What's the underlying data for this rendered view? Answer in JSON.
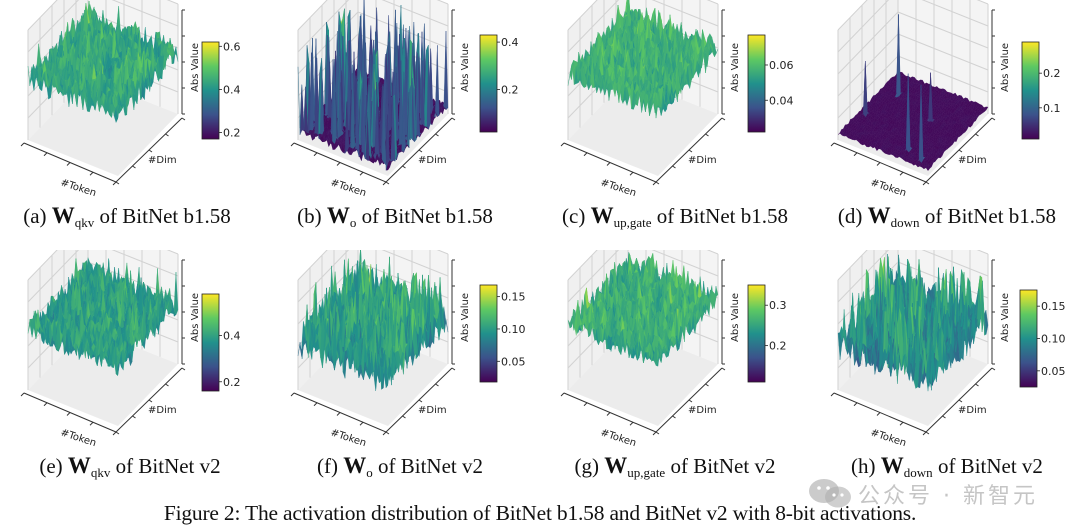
{
  "figure": {
    "caption": "Figure 2: The activation distribution of BitNet b1.58 and BitNet v2 with 8-bit activations."
  },
  "watermark": {
    "text": "公众号 · 新智元",
    "icon": "wechat-icon"
  },
  "colormap": [
    "#440154",
    "#3b528b",
    "#21918c",
    "#5ec962",
    "#fde725"
  ],
  "chart_data": [
    {
      "type": "surface3d",
      "id": "a",
      "label": "(a)",
      "symbol": "W",
      "subscript": "qkv",
      "suffix": "of BitNet b1.58",
      "xlabel": "#Token",
      "ylabel": "#Dim",
      "zlabel": "Abs Value",
      "colorbar": {
        "range": [
          0.17,
          0.62
        ],
        "ticks": [
          "0.6",
          "0.4",
          "0.2"
        ],
        "tick_values": [
          0.6,
          0.4,
          0.2
        ]
      },
      "distribution": {
        "base": 0.42,
        "spread": 0.09,
        "spikes": 0.03,
        "spike_max": 0.62,
        "floor": 0.17
      }
    },
    {
      "type": "surface3d",
      "id": "b",
      "label": "(b)",
      "symbol": "W",
      "subscript": "o",
      "suffix": "of BitNet b1.58",
      "xlabel": "#Token",
      "ylabel": "#Dim",
      "zlabel": "Abs Value",
      "colorbar": {
        "range": [
          0.02,
          0.43
        ],
        "ticks": [
          "0.4",
          "0.2"
        ],
        "tick_values": [
          0.4,
          0.2
        ]
      },
      "distribution": {
        "base": 0.04,
        "spread": 0.02,
        "spikes": 0.12,
        "spike_max": 0.43,
        "floor": 0.02
      }
    },
    {
      "type": "surface3d",
      "id": "c",
      "label": "(c)",
      "symbol": "W",
      "subscript": "up,gate",
      "suffix": "of BitNet b1.58",
      "xlabel": "#Token",
      "ylabel": "#Dim",
      "zlabel": "Abs Value",
      "colorbar": {
        "range": [
          0.022,
          0.077
        ],
        "ticks": [
          "0.06",
          "0.04"
        ],
        "tick_values": [
          0.06,
          0.04
        ]
      },
      "distribution": {
        "base": 0.055,
        "spread": 0.01,
        "spikes": 0.03,
        "spike_max": 0.077,
        "floor": 0.022
      }
    },
    {
      "type": "surface3d",
      "id": "d",
      "label": "(d)",
      "symbol": "W",
      "subscript": "down",
      "suffix": "of BitNet b1.58",
      "xlabel": "#Token",
      "ylabel": "#Dim",
      "zlabel": "Abs Value",
      "colorbar": {
        "range": [
          0.01,
          0.29
        ],
        "ticks": [
          "0.2",
          "0.1"
        ],
        "tick_values": [
          0.2,
          0.1
        ]
      },
      "distribution": {
        "base": 0.02,
        "spread": 0.005,
        "spikes": 0.004,
        "spike_max": 0.29,
        "floor": 0.01
      }
    },
    {
      "type": "surface3d",
      "id": "e",
      "label": "(e)",
      "symbol": "W",
      "subscript": "qkv",
      "suffix": "of BitNet v2",
      "xlabel": "#Token",
      "ylabel": "#Dim",
      "zlabel": "Abs Value",
      "colorbar": {
        "range": [
          0.16,
          0.58
        ],
        "ticks": [
          "0.4",
          "0.2"
        ],
        "tick_values": [
          0.4,
          0.2
        ]
      },
      "distribution": {
        "base": 0.38,
        "spread": 0.08,
        "spikes": 0.03,
        "spike_max": 0.58,
        "floor": 0.16
      }
    },
    {
      "type": "surface3d",
      "id": "f",
      "label": "(f)",
      "symbol": "W",
      "subscript": "o",
      "suffix": "of BitNet v2",
      "xlabel": "#Token",
      "ylabel": "#Dim",
      "zlabel": "Abs Value",
      "colorbar": {
        "range": [
          0.018,
          0.168
        ],
        "ticks": [
          "0.15",
          "0.10",
          "0.05"
        ],
        "tick_values": [
          0.15,
          0.1,
          0.05
        ]
      },
      "distribution": {
        "base": 0.09,
        "spread": 0.035,
        "spikes": 0.08,
        "spike_max": 0.168,
        "floor": 0.018
      }
    },
    {
      "type": "surface3d",
      "id": "g",
      "label": "(g)",
      "symbol": "W",
      "subscript": "up,gate",
      "suffix": "of BitNet v2",
      "xlabel": "#Token",
      "ylabel": "#Dim",
      "zlabel": "Abs Value",
      "colorbar": {
        "range": [
          0.11,
          0.35
        ],
        "ticks": [
          "0.3",
          "0.2"
        ],
        "tick_values": [
          0.3,
          0.2
        ]
      },
      "distribution": {
        "base": 0.25,
        "spread": 0.045,
        "spikes": 0.04,
        "spike_max": 0.35,
        "floor": 0.11
      }
    },
    {
      "type": "surface3d",
      "id": "h",
      "label": "(h)",
      "symbol": "W",
      "subscript": "down",
      "suffix": "of BitNet v2",
      "xlabel": "#Token",
      "ylabel": "#Dim",
      "zlabel": "Abs Value",
      "colorbar": {
        "range": [
          0.025,
          0.175
        ],
        "ticks": [
          "0.15",
          "0.10",
          "0.05"
        ],
        "tick_values": [
          0.15,
          0.1,
          0.05
        ]
      },
      "distribution": {
        "base": 0.085,
        "spread": 0.03,
        "spikes": 0.1,
        "spike_max": 0.175,
        "floor": 0.025
      }
    }
  ]
}
